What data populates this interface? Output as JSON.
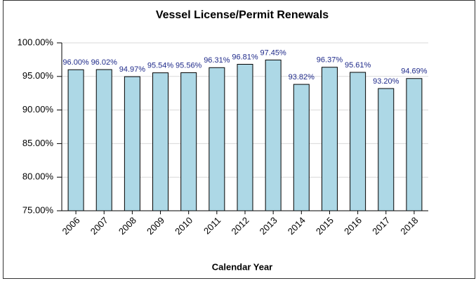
{
  "chart_data": {
    "type": "bar",
    "title": "Vessel License/Permit Renewals",
    "x_label": "Calendar Year",
    "categories": [
      "2006",
      "2007",
      "2008",
      "2009",
      "2010",
      "2011",
      "2012",
      "2013",
      "2014",
      "2015",
      "2016",
      "2017",
      "2018"
    ],
    "values": [
      96.0,
      96.02,
      94.97,
      95.54,
      95.56,
      96.31,
      96.81,
      97.45,
      93.82,
      96.37,
      95.61,
      93.2,
      94.69
    ],
    "value_labels": [
      "96.00%",
      "96.02%",
      "94.97%",
      "95.54%",
      "95.56%",
      "96.31%",
      "96.81%",
      "97.45%",
      "93.82%",
      "96.37%",
      "95.61%",
      "93.20%",
      "94.69%"
    ],
    "color": "#add8e6",
    "ylim": [
      75,
      100
    ],
    "yticks": [
      {
        "value": 75,
        "label": "75.00%"
      },
      {
        "value": 80,
        "label": "80.00%"
      },
      {
        "value": 85,
        "label": "85.00%"
      },
      {
        "value": 90,
        "label": "90.00%"
      },
      {
        "value": 95,
        "label": "95.00%"
      },
      {
        "value": 100,
        "label": "100.00%"
      }
    ],
    "grid": true
  }
}
